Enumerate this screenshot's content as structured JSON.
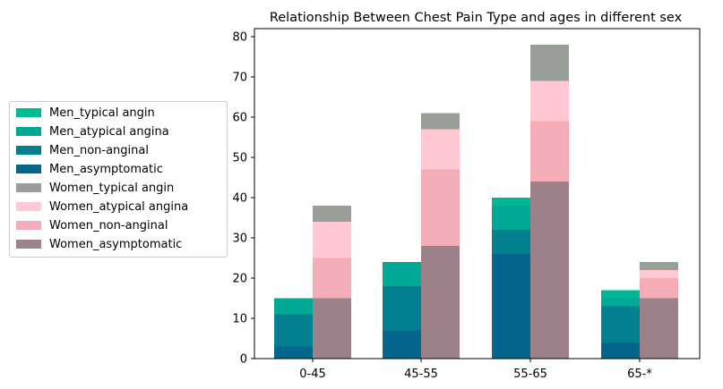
{
  "chart_data": {
    "type": "bar",
    "title": "Relationship Between Chest Pain Type and ages in different sex",
    "xlabel": "",
    "ylabel": "",
    "categories": [
      "0-45",
      "45-55",
      "55-65",
      "65-*"
    ],
    "ylim": [
      0,
      82
    ],
    "yticks": [
      0,
      10,
      20,
      30,
      40,
      50,
      60,
      70,
      80
    ],
    "stacked": true,
    "groups": [
      "Men",
      "Women"
    ],
    "legend_position": "left",
    "series": [
      {
        "name": "Men_typical angin",
        "group": "Men",
        "color": "#00b894",
        "values": [
          0,
          0,
          2,
          2
        ]
      },
      {
        "name": "Men_atypical angina",
        "group": "Men",
        "color": "#00a896",
        "values": [
          4,
          6,
          6,
          2
        ]
      },
      {
        "name": "Men_non-anginal",
        "group": "Men",
        "color": "#028090",
        "values": [
          8,
          11,
          6,
          9
        ]
      },
      {
        "name": "Men_asymptomatic",
        "group": "Men",
        "color": "#05668d",
        "values": [
          3,
          7,
          26,
          4
        ]
      },
      {
        "name": "Women_typical angin",
        "group": "Women",
        "color": "#9a9e98",
        "values": [
          4,
          4,
          9,
          2
        ]
      },
      {
        "name": "Women_atypical angina",
        "group": "Women",
        "color": "#ffc8d2",
        "values": [
          9,
          10,
          10,
          2
        ]
      },
      {
        "name": "Women_non-anginal",
        "group": "Women",
        "color": "#f4acb7",
        "values": [
          10,
          19,
          15,
          5
        ]
      },
      {
        "name": "Women_asymptomatic",
        "group": "Women",
        "color": "#9d8189",
        "values": [
          15,
          28,
          44,
          15
        ]
      }
    ]
  }
}
